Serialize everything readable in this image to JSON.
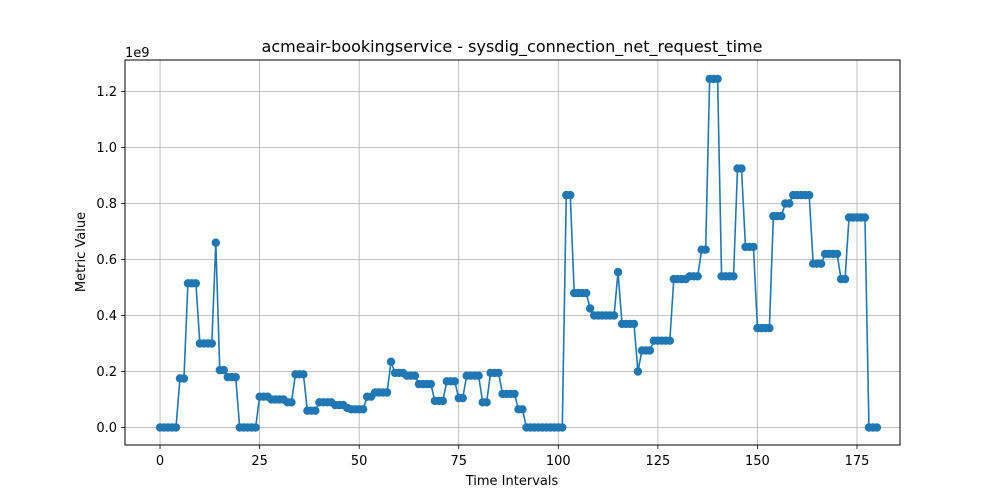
{
  "chart_data": {
    "type": "line",
    "title": "acmeair-bookingservice - sysdig_connection_net_request_time",
    "xlabel": "Time Intervals",
    "ylabel": "Metric Value",
    "y_multiplier_label": "1e9",
    "xlim": [
      -8.8,
      185.8
    ],
    "ylim": [
      -0.0625,
      1.3125
    ],
    "x_ticks": [
      0,
      25,
      50,
      75,
      100,
      125,
      150,
      175
    ],
    "y_ticks": [
      0.0,
      0.2,
      0.4,
      0.6,
      0.8,
      1.0,
      1.2
    ],
    "x_tick_labels": [
      "0",
      "25",
      "50",
      "75",
      "100",
      "125",
      "150",
      "175"
    ],
    "y_tick_labels": [
      "0.0",
      "0.2",
      "0.4",
      "0.6",
      "0.8",
      "1.0",
      "1.2"
    ],
    "grid": true,
    "marker": "circle",
    "series": [
      {
        "color": "#1f77b4",
        "values": [
          0,
          0,
          0,
          0,
          0,
          0.175,
          0.175,
          0.515,
          0.515,
          0.515,
          0.3,
          0.3,
          0.3,
          0.3,
          0.66,
          0.205,
          0.205,
          0.18,
          0.18,
          0.18,
          0,
          0,
          0,
          0,
          0,
          0.11,
          0.11,
          0.11,
          0.1,
          0.1,
          0.1,
          0.1,
          0.09,
          0.09,
          0.19,
          0.19,
          0.19,
          0.06,
          0.06,
          0.06,
          0.09,
          0.09,
          0.09,
          0.09,
          0.08,
          0.08,
          0.08,
          0.07,
          0.065,
          0.065,
          0.065,
          0.065,
          0.11,
          0.11,
          0.125,
          0.125,
          0.125,
          0.125,
          0.235,
          0.195,
          0.195,
          0.195,
          0.185,
          0.185,
          0.185,
          0.155,
          0.155,
          0.155,
          0.155,
          0.095,
          0.095,
          0.095,
          0.165,
          0.165,
          0.165,
          0.105,
          0.105,
          0.185,
          0.185,
          0.185,
          0.185,
          0.09,
          0.09,
          0.195,
          0.195,
          0.195,
          0.12,
          0.12,
          0.12,
          0.12,
          0.065,
          0.065,
          0,
          0,
          0,
          0,
          0,
          0,
          0,
          0,
          0,
          0,
          0.83,
          0.83,
          0.48,
          0.48,
          0.48,
          0.48,
          0.425,
          0.4,
          0.4,
          0.4,
          0.4,
          0.4,
          0.4,
          0.555,
          0.37,
          0.37,
          0.37,
          0.37,
          0.2,
          0.275,
          0.275,
          0.275,
          0.31,
          0.31,
          0.31,
          0.31,
          0.31,
          0.53,
          0.53,
          0.53,
          0.53,
          0.54,
          0.54,
          0.54,
          0.635,
          0.635,
          1.245,
          1.245,
          1.245,
          0.54,
          0.54,
          0.54,
          0.54,
          0.925,
          0.925,
          0.645,
          0.645,
          0.645,
          0.355,
          0.355,
          0.355,
          0.355,
          0.755,
          0.755,
          0.755,
          0.8,
          0.8,
          0.83,
          0.83,
          0.83,
          0.83,
          0.83,
          0.585,
          0.585,
          0.585,
          0.62,
          0.62,
          0.62,
          0.62,
          0.53,
          0.53,
          0.75,
          0.75,
          0.75,
          0.75,
          0.75,
          0,
          0,
          0
        ]
      }
    ]
  }
}
